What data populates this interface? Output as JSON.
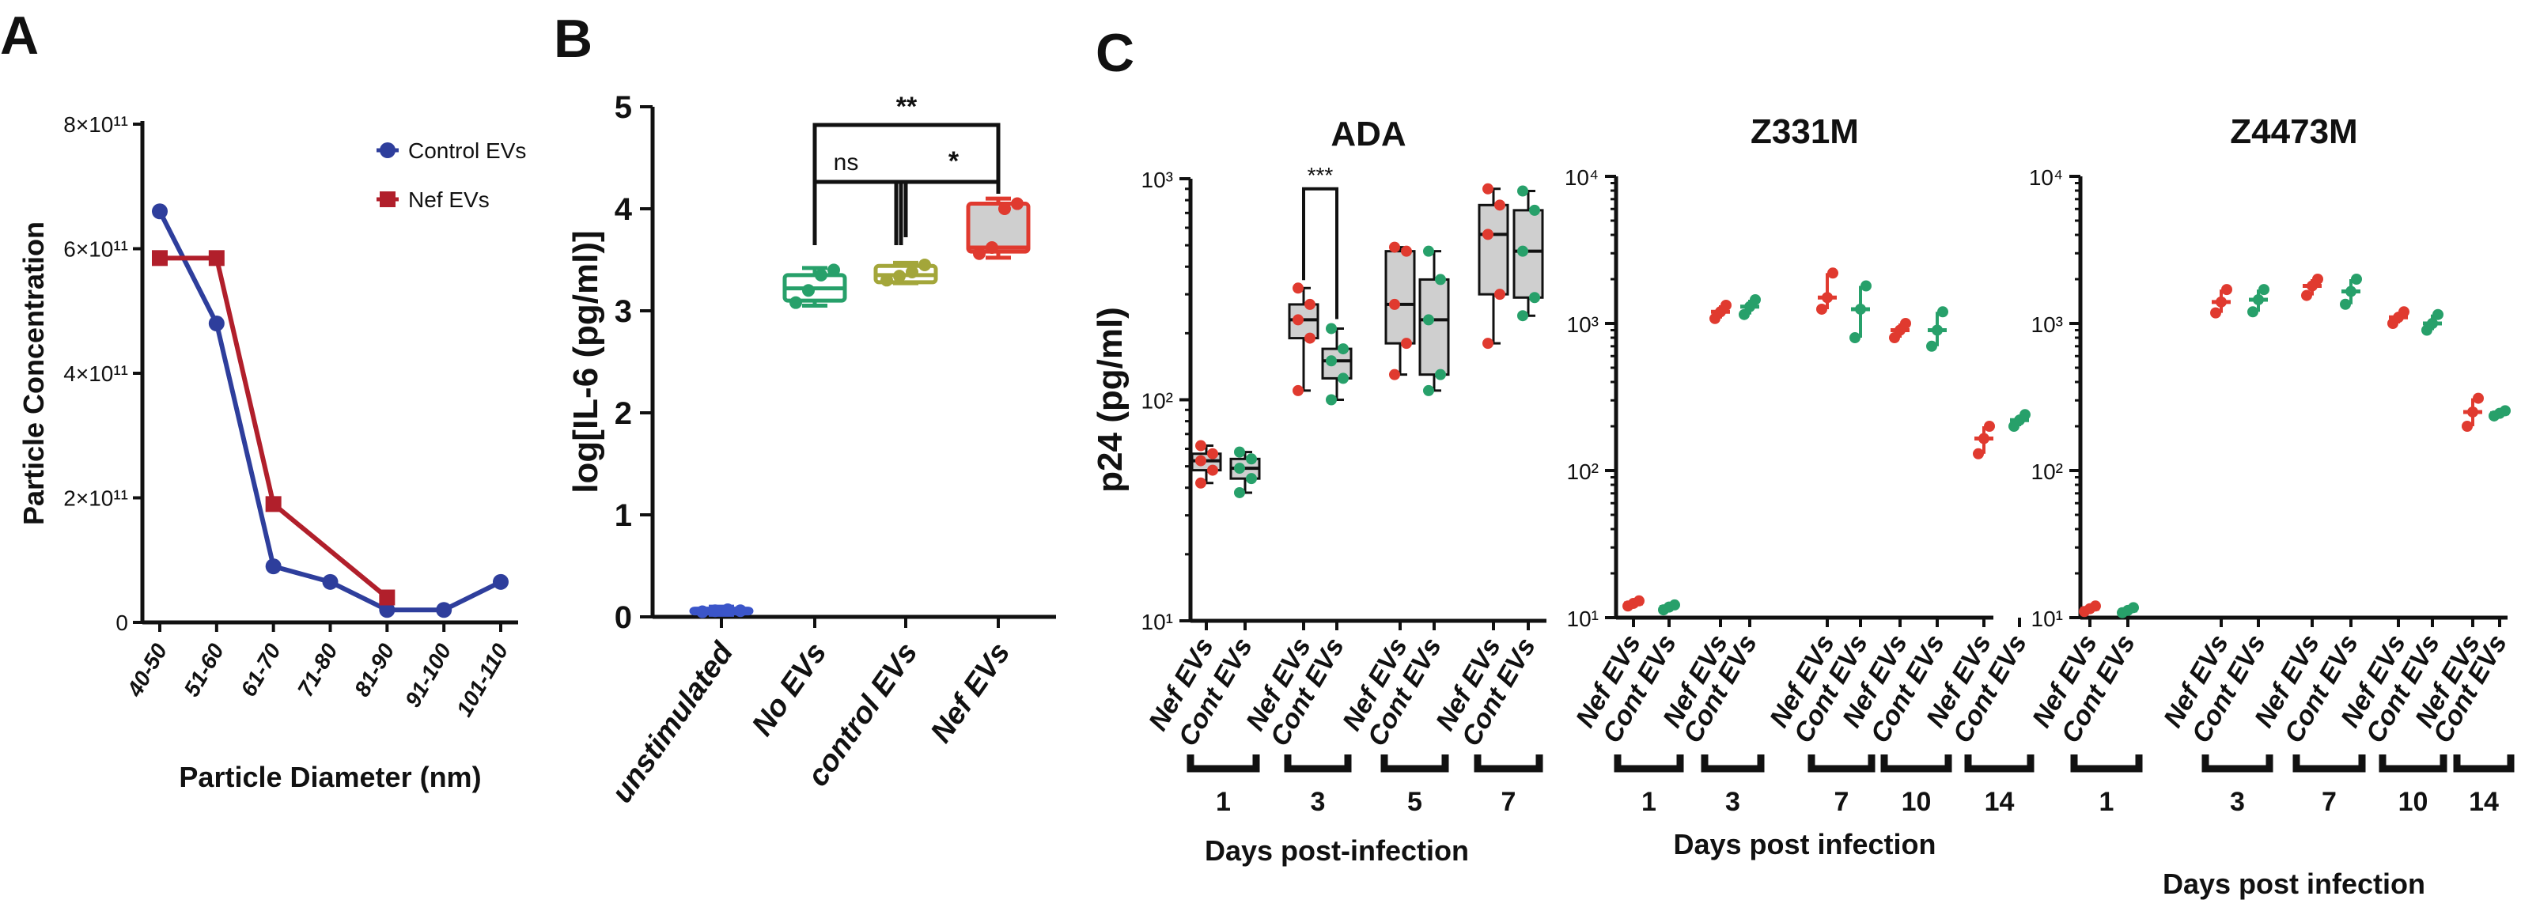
{
  "chart_data": [
    {
      "panel": "A",
      "type": "line",
      "title": "",
      "xlabel": "Particle Diameter (nm)",
      "ylabel": "Particle Concentration",
      "categories": [
        "40-50",
        "51-60",
        "61-70",
        "71-80",
        "81-90",
        "91-100",
        "101-110"
      ],
      "ylim": [
        0,
        800000000000.0
      ],
      "yticks": [
        0,
        200000000000.0,
        400000000000.0,
        600000000000.0,
        800000000000.0
      ],
      "ytick_labels": [
        "0",
        "2×10¹¹",
        "4×10¹¹",
        "6×10¹¹",
        "8×10¹¹"
      ],
      "legend_position": "top-right",
      "series": [
        {
          "name": "Control EVs",
          "color": "#2e3e9c",
          "marker": "circle",
          "values": [
            660000000000.0,
            480000000000.0,
            90000000000.0,
            65000000000.0,
            20000000000.0,
            20000000000.0,
            65000000000.0
          ]
        },
        {
          "name": "Nef EVs",
          "color": "#b11f2b",
          "marker": "square",
          "values": [
            585000000000.0,
            585000000000.0,
            190000000000.0,
            null,
            40000000000.0,
            null,
            null
          ]
        }
      ]
    },
    {
      "panel": "B",
      "type": "box",
      "xlabel": "",
      "ylabel": "log[IL-6 (pg/ml)]",
      "ylim": [
        0,
        5
      ],
      "yticks": [
        0,
        1,
        2,
        3,
        4,
        5
      ],
      "categories": [
        "unstimulated",
        "No EVs",
        "control EVs",
        "Nef EVs"
      ],
      "colors": [
        "#3b55c9",
        "#27a06a",
        "#a3a63a",
        "#e03a2f"
      ],
      "boxes": [
        {
          "min": 0.02,
          "q1": 0.04,
          "median": 0.06,
          "q3": 0.08,
          "max": 0.1,
          "points": [
            0.05,
            0.06,
            0.07,
            0.06
          ]
        },
        {
          "min": 3.05,
          "q1": 3.1,
          "median": 3.22,
          "q3": 3.35,
          "max": 3.42,
          "points": [
            3.08,
            3.2,
            3.35,
            3.4
          ]
        },
        {
          "min": 3.27,
          "q1": 3.28,
          "median": 3.35,
          "q3": 3.44,
          "max": 3.47,
          "points": [
            3.3,
            3.34,
            3.38,
            3.45
          ]
        },
        {
          "min": 3.52,
          "q1": 3.58,
          "median": 3.62,
          "q3": 4.05,
          "max": 4.1,
          "points": [
            3.56,
            3.62,
            4.0,
            4.05
          ]
        }
      ],
      "annotations": [
        {
          "text": "ns",
          "between": [
            "No EVs",
            "control EVs"
          ]
        },
        {
          "text": "*",
          "between": [
            "control EVs",
            "Nef EVs"
          ]
        },
        {
          "text": "**",
          "between": [
            "No EVs",
            "Nef EVs"
          ]
        }
      ]
    },
    {
      "panel": "C",
      "title": "ADA",
      "type": "box",
      "yscale": "log",
      "ylim": [
        10,
        1000
      ],
      "ytick_labels": [
        "10¹",
        "10²",
        "10³"
      ],
      "ylabel": "p24 (pg/ml)",
      "xlabel": "Days post-infection",
      "series_names": [
        "Nef EVs",
        "Cont EVs"
      ],
      "groups": [
        "1",
        "3",
        "5",
        "7"
      ],
      "colors": {
        "Nef EVs": "#e03a2f",
        "Cont EVs": "#27a06a"
      },
      "boxes": [
        {
          "group": "1",
          "series": "Nef EVs",
          "min": 42,
          "q1": 48,
          "median": 53,
          "q3": 57,
          "max": 62
        },
        {
          "group": "1",
          "series": "Cont EVs",
          "min": 38,
          "q1": 44,
          "median": 49,
          "q3": 54,
          "max": 58
        },
        {
          "group": "3",
          "series": "Nef EVs",
          "min": 110,
          "q1": 190,
          "median": 230,
          "q3": 270,
          "max": 320
        },
        {
          "group": "3",
          "series": "Cont EVs",
          "min": 100,
          "q1": 125,
          "median": 150,
          "q3": 170,
          "max": 210
        },
        {
          "group": "5",
          "series": "Nef EVs",
          "min": 130,
          "q1": 180,
          "median": 270,
          "q3": 470,
          "max": 490
        },
        {
          "group": "5",
          "series": "Cont EVs",
          "min": 110,
          "q1": 130,
          "median": 230,
          "q3": 350,
          "max": 470
        },
        {
          "group": "7",
          "series": "Nef EVs",
          "min": 180,
          "q1": 300,
          "median": 560,
          "q3": 760,
          "max": 900
        },
        {
          "group": "7",
          "series": "Cont EVs",
          "min": 240,
          "q1": 290,
          "median": 470,
          "q3": 720,
          "max": 880
        }
      ],
      "annotations": [
        {
          "text": "***",
          "group": "3"
        }
      ]
    },
    {
      "panel": "C",
      "title": "Z331M",
      "type": "scatter",
      "yscale": "log",
      "ylim": [
        10,
        10000
      ],
      "ytick_labels": [
        "10¹",
        "10²",
        "10³",
        "10⁴"
      ],
      "xlabel": "Days post infection",
      "series_names": [
        "Nef EVs",
        "Cont EVs"
      ],
      "groups": [
        "1",
        "3",
        "7",
        "10",
        "14"
      ],
      "colors": {
        "Nef EVs": "#e03a2f",
        "Cont EVs": "#27a06a"
      },
      "points": [
        {
          "group": "1",
          "series": "Nef EVs",
          "mean": 12.5,
          "low": 12,
          "high": 13
        },
        {
          "group": "1",
          "series": "Cont EVs",
          "mean": 11.8,
          "low": 11.3,
          "high": 12.2
        },
        {
          "group": "3",
          "series": "Nef EVs",
          "mean": 1200,
          "low": 1080,
          "high": 1330
        },
        {
          "group": "3",
          "series": "Cont EVs",
          "mean": 1300,
          "low": 1150,
          "high": 1450
        },
        {
          "group": "7",
          "series": "Nef EVs",
          "mean": 1500,
          "low": 1250,
          "high": 2200
        },
        {
          "group": "7",
          "series": "Cont EVs",
          "mean": 1250,
          "low": 800,
          "high": 1800
        },
        {
          "group": "10",
          "series": "Nef EVs",
          "mean": 900,
          "low": 800,
          "high": 1000
        },
        {
          "group": "10",
          "series": "Cont EVs",
          "mean": 900,
          "low": 700,
          "high": 1200
        },
        {
          "group": "14",
          "series": "Nef EVs",
          "mean": 165,
          "low": 130,
          "high": 200
        },
        {
          "group": "14",
          "series": "Cont EVs",
          "mean": 220,
          "low": 200,
          "high": 240
        }
      ]
    },
    {
      "panel": "C",
      "title": "Z4473M",
      "type": "scatter",
      "yscale": "log",
      "ylim": [
        10,
        10000
      ],
      "ytick_labels": [
        "10¹",
        "10²",
        "10³",
        "10⁴"
      ],
      "xlabel": "Days post infection",
      "series_names": [
        "Nef EVs",
        "Cont EVs"
      ],
      "groups": [
        "1",
        "3",
        "7",
        "10",
        "14"
      ],
      "colors": {
        "Nef EVs": "#e03a2f",
        "Cont EVs": "#27a06a"
      },
      "points": [
        {
          "group": "1",
          "series": "Nef EVs",
          "mean": 11.5,
          "low": 11,
          "high": 12
        },
        {
          "group": "1",
          "series": "Cont EVs",
          "mean": 11.2,
          "low": 10.8,
          "high": 11.7
        },
        {
          "group": "3",
          "series": "Nef EVs",
          "mean": 1400,
          "low": 1180,
          "high": 1700
        },
        {
          "group": "3",
          "series": "Cont EVs",
          "mean": 1450,
          "low": 1200,
          "high": 1700
        },
        {
          "group": "7",
          "series": "Nef EVs",
          "mean": 1800,
          "low": 1550,
          "high": 2000
        },
        {
          "group": "7",
          "series": "Cont EVs",
          "mean": 1650,
          "low": 1350,
          "high": 2000
        },
        {
          "group": "10",
          "series": "Nef EVs",
          "mean": 1100,
          "low": 1000,
          "high": 1200
        },
        {
          "group": "10",
          "series": "Cont EVs",
          "mean": 1000,
          "low": 900,
          "high": 1150
        },
        {
          "group": "14",
          "series": "Nef EVs",
          "mean": 250,
          "low": 200,
          "high": 310
        },
        {
          "group": "14",
          "series": "Cont EVs",
          "mean": 245,
          "low": 235,
          "high": 255
        }
      ]
    }
  ],
  "labels": {
    "a": "A",
    "b": "B",
    "c": "C"
  }
}
